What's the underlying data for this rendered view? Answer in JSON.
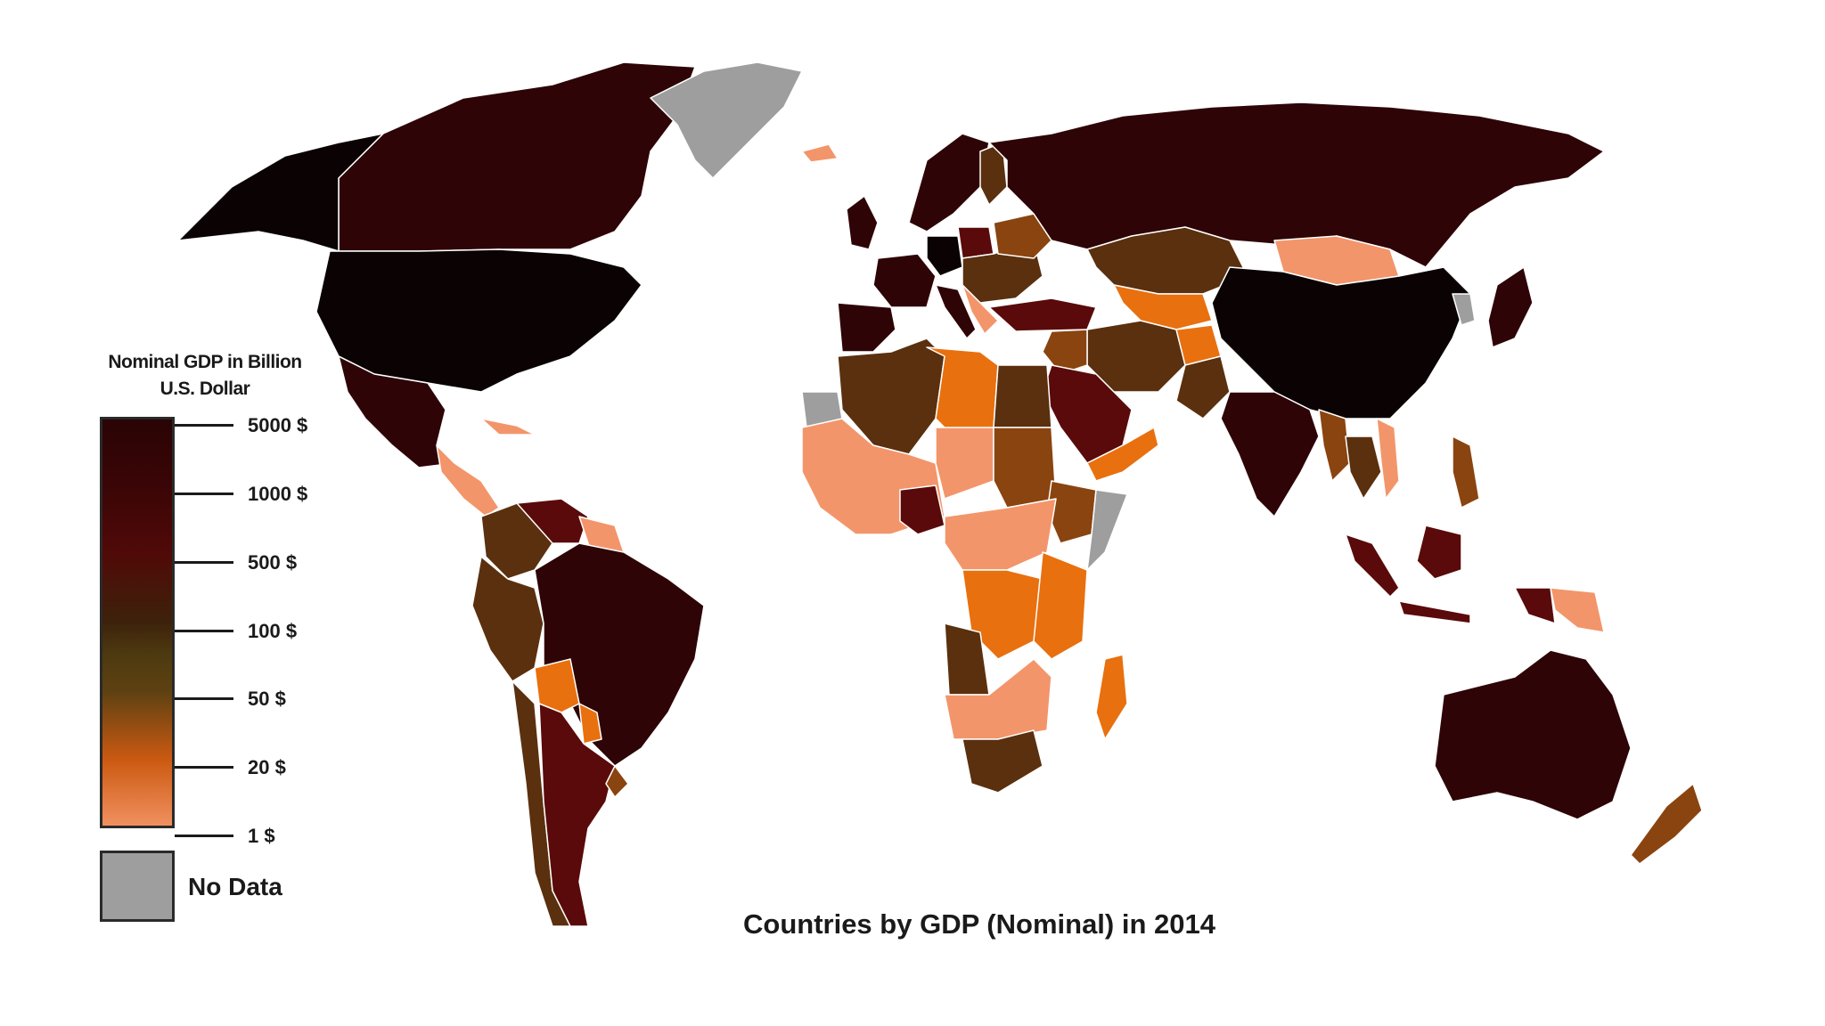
{
  "title": "Countries by GDP (Nominal) in 2014",
  "legend": {
    "title_line1": "Nominal GDP in Billion",
    "title_line2": "U.S. Dollar",
    "ticks": [
      "5000 $",
      "1000 $",
      "500 $",
      "100 $",
      "50 $",
      "20 $",
      "1 $"
    ],
    "no_data_label": "No Data"
  },
  "colors": {
    "ocean": "#ffffff",
    "tier_5000": "#0a0203",
    "tier_1000": "#2e0406",
    "tier_500": "#5a0a0a",
    "tier_100": "#5a300e",
    "tier_50": "#8a4410",
    "tier_20": "#e8700f",
    "tier_1": "#f3956a",
    "no_data": "#9e9e9e"
  }
}
